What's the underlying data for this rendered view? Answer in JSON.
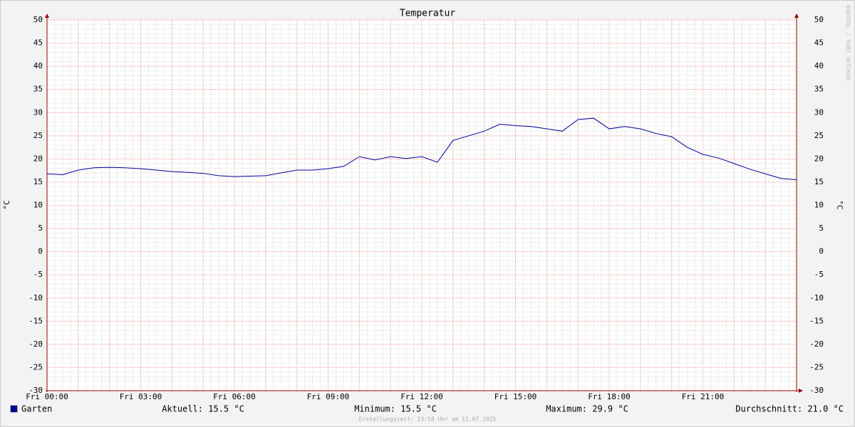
{
  "chart_data": {
    "type": "line",
    "title": "Temperatur",
    "y_label": "°C",
    "watermark": "RRDTOOL / TOBI OETIKER",
    "footer": "Erstellungszeit: 23:58 Uhr am 11.07.2025",
    "x": [
      0,
      0.5,
      1,
      1.5,
      2,
      2.5,
      3,
      3.5,
      4,
      4.5,
      5,
      5.5,
      6,
      6.5,
      7,
      7.5,
      8,
      8.5,
      9,
      9.5,
      10,
      10.5,
      11,
      11.5,
      12,
      12.5,
      13,
      13.5,
      14,
      14.5,
      15,
      15.5,
      16,
      16.5,
      17,
      17.5,
      18,
      18.5,
      19,
      19.5,
      20,
      20.5,
      21,
      21.5,
      22,
      22.5,
      23,
      23.5,
      24
    ],
    "series": [
      {
        "name": "Garten",
        "color": "#000099",
        "values": [
          16.8,
          16.6,
          17.6,
          18.1,
          18.2,
          18.1,
          17.9,
          17.6,
          17.3,
          17.1,
          16.9,
          16.4,
          16.2,
          16.3,
          16.4,
          17.0,
          17.6,
          17.6,
          17.9,
          18.4,
          20.5,
          19.8,
          20.5,
          20.1,
          20.5,
          19.3,
          24.0,
          25.0,
          26.0,
          27.5,
          27.2,
          27.0,
          26.5,
          26.0,
          28.5,
          28.8,
          26.5,
          27.0,
          26.5,
          25.5,
          24.8,
          22.5,
          21.0,
          20.2,
          19.0,
          17.8,
          16.8,
          15.8,
          15.5
        ]
      }
    ],
    "stats": [
      "Aktuell: 15.5 °C",
      "Minimum: 15.5 °C",
      "Maximum: 29.9 °C",
      "Durchschnitt: 21.0 °C"
    ],
    "xlim": [
      0,
      24
    ],
    "xticks": [
      {
        "value": 0,
        "label": "Fri 00:00"
      },
      {
        "value": 3,
        "label": "Fri 03:00"
      },
      {
        "value": 6,
        "label": "Fri 06:00"
      },
      {
        "value": 9,
        "label": "Fri 09:00"
      },
      {
        "value": 12,
        "label": "Fri 12:00"
      },
      {
        "value": 15,
        "label": "Fri 15:00"
      },
      {
        "value": 18,
        "label": "Fri 18:00"
      },
      {
        "value": 21,
        "label": "Fri 21:00"
      }
    ],
    "ylim": [
      -30,
      50
    ],
    "yticks": [
      -30,
      -25,
      -20,
      -15,
      -10,
      -5,
      0,
      5,
      10,
      15,
      20,
      25,
      30,
      35,
      40,
      45,
      50
    ],
    "grid": true
  }
}
